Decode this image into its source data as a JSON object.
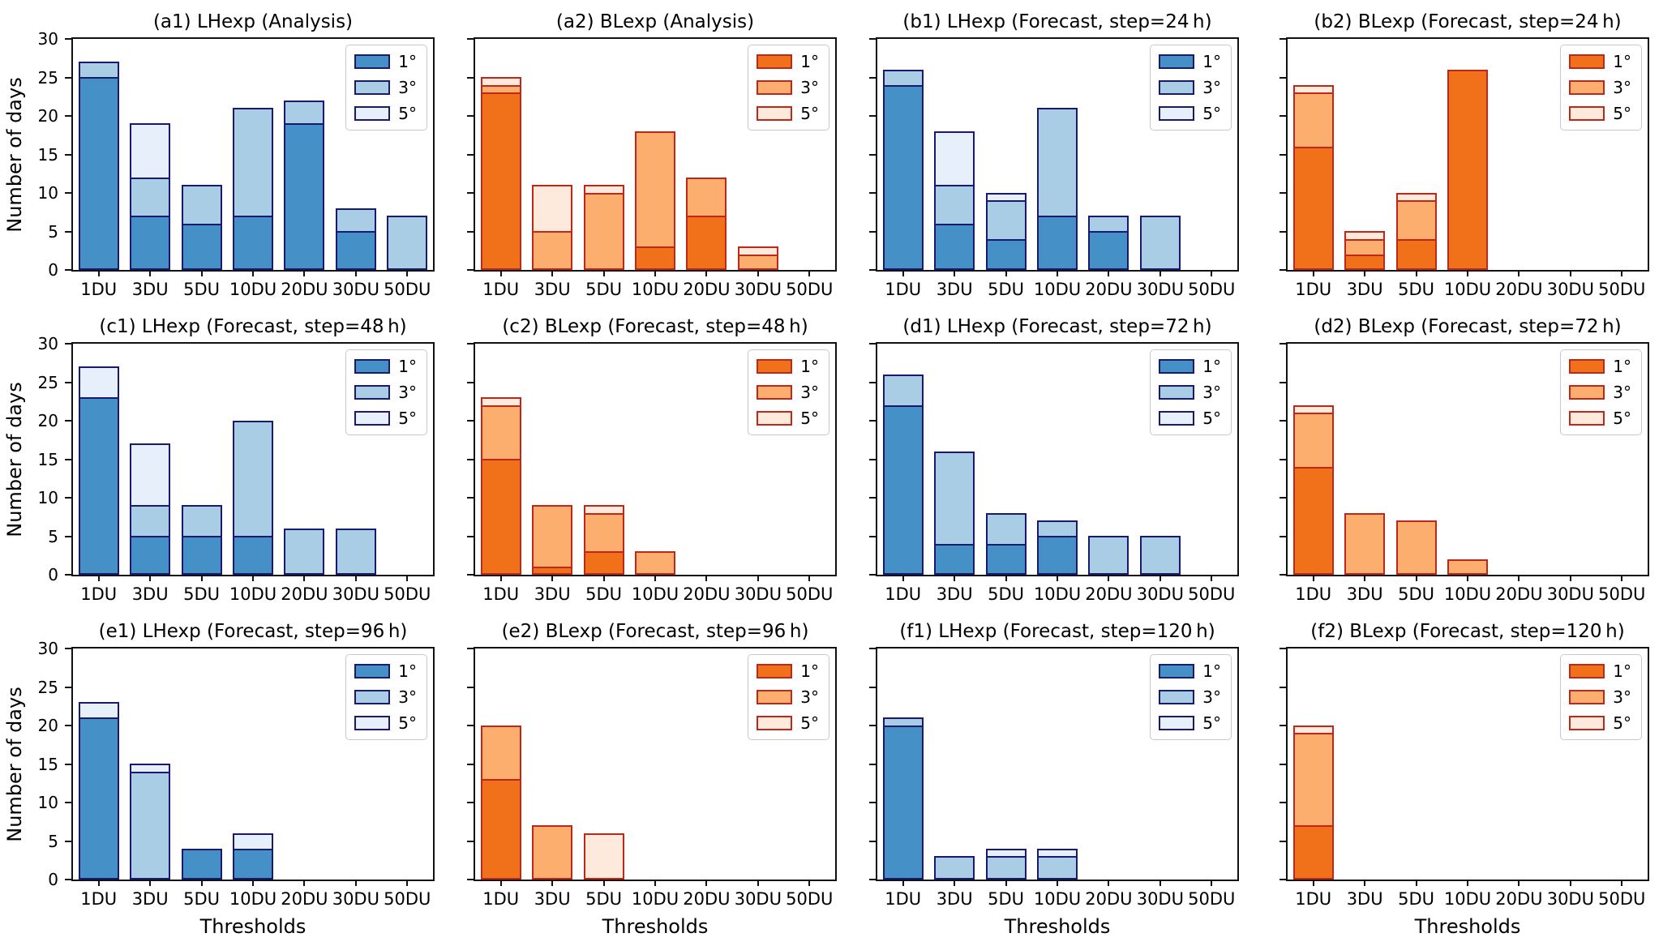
{
  "figure": {
    "ylabel": "Number of days",
    "xlabel": "Thresholds",
    "categories": [
      "1DU",
      "3DU",
      "5DU",
      "10DU",
      "20DU",
      "30DU",
      "50DU"
    ],
    "yticks": [
      "0",
      "5",
      "10",
      "15",
      "20",
      "25",
      "30"
    ],
    "ylim": [
      0,
      30
    ],
    "legend": [
      "1°",
      "3°",
      "5°"
    ],
    "colors": {
      "blue": {
        "deg1": "#4591c7",
        "deg3": "#a9cde4",
        "deg5": "#e7f0fa",
        "edge": "#191970"
      },
      "orange": {
        "deg1": "#f1701a",
        "deg3": "#fbae6e",
        "deg5": "#fdeadd",
        "edge": "#bf2818"
      }
    }
  },
  "chart_data": [
    {
      "type": "overlaid-bar",
      "id": "a1",
      "title": "(a1) LHexp (Analysis)",
      "palette": "blue",
      "series": {
        "deg1": [
          25,
          7,
          6,
          7,
          19,
          5,
          null
        ],
        "deg3": [
          27,
          12,
          11,
          21,
          22,
          8,
          7
        ],
        "deg5": [
          null,
          19,
          null,
          null,
          null,
          null,
          null
        ]
      }
    },
    {
      "type": "overlaid-bar",
      "id": "a2",
      "title": "(a2) BLexp (Analysis)",
      "palette": "orange",
      "series": {
        "deg1": [
          23,
          null,
          null,
          3,
          7,
          null,
          null
        ],
        "deg3": [
          24,
          5,
          10,
          18,
          12,
          2,
          null
        ],
        "deg5": [
          25,
          11,
          11,
          null,
          null,
          3,
          null
        ]
      }
    },
    {
      "type": "overlaid-bar",
      "id": "b1",
      "title": "(b1) LHexp (Forecast, step=24 h)",
      "palette": "blue",
      "series": {
        "deg1": [
          24,
          6,
          4,
          7,
          5,
          null,
          null
        ],
        "deg3": [
          26,
          11,
          9,
          21,
          7,
          7,
          null
        ],
        "deg5": [
          null,
          18,
          10,
          null,
          null,
          null,
          null
        ]
      }
    },
    {
      "type": "overlaid-bar",
      "id": "b2",
      "title": "(b2) BLexp (Forecast, step=24 h)",
      "palette": "orange",
      "series": {
        "deg1": [
          16,
          2,
          4,
          26,
          null,
          null,
          null
        ],
        "deg3": [
          23,
          4,
          9,
          null,
          null,
          null,
          null
        ],
        "deg5": [
          24,
          5,
          10,
          null,
          null,
          null,
          null
        ]
      }
    },
    {
      "type": "overlaid-bar",
      "id": "c1",
      "title": "(c1) LHexp (Forecast, step=48 h)",
      "palette": "blue",
      "series": {
        "deg1": [
          23,
          5,
          5,
          5,
          null,
          null,
          null
        ],
        "deg3": [
          null,
          9,
          9,
          20,
          6,
          6,
          null
        ],
        "deg5": [
          27,
          17,
          null,
          null,
          null,
          null,
          null
        ]
      }
    },
    {
      "type": "overlaid-bar",
      "id": "c2",
      "title": "(c2) BLexp (Forecast, step=48 h)",
      "palette": "orange",
      "series": {
        "deg1": [
          15,
          1,
          3,
          null,
          null,
          null,
          null
        ],
        "deg3": [
          22,
          9,
          8,
          3,
          null,
          null,
          null
        ],
        "deg5": [
          23,
          null,
          9,
          null,
          null,
          null,
          null
        ]
      }
    },
    {
      "type": "overlaid-bar",
      "id": "d1",
      "title": "(d1) LHexp (Forecast, step=72 h)",
      "palette": "blue",
      "series": {
        "deg1": [
          22,
          4,
          4,
          5,
          null,
          null,
          null
        ],
        "deg3": [
          26,
          16,
          8,
          7,
          5,
          5,
          null
        ],
        "deg5": [
          null,
          null,
          null,
          null,
          null,
          null,
          null
        ]
      }
    },
    {
      "type": "overlaid-bar",
      "id": "d2",
      "title": "(d2) BLexp (Forecast, step=72 h)",
      "palette": "orange",
      "series": {
        "deg1": [
          14,
          null,
          null,
          null,
          null,
          null,
          null
        ],
        "deg3": [
          21,
          8,
          7,
          2,
          null,
          null,
          null
        ],
        "deg5": [
          22,
          null,
          null,
          null,
          null,
          null,
          null
        ]
      }
    },
    {
      "type": "overlaid-bar",
      "id": "e1",
      "title": "(e1) LHexp (Forecast, step=96 h)",
      "palette": "blue",
      "series": {
        "deg1": [
          21,
          null,
          4,
          4,
          null,
          null,
          null
        ],
        "deg3": [
          null,
          14,
          null,
          null,
          null,
          null,
          null
        ],
        "deg5": [
          23,
          15,
          null,
          6,
          null,
          null,
          null
        ]
      }
    },
    {
      "type": "overlaid-bar",
      "id": "e2",
      "title": "(e2) BLexp (Forecast, step=96 h)",
      "palette": "orange",
      "series": {
        "deg1": [
          13,
          null,
          null,
          null,
          null,
          null,
          null
        ],
        "deg3": [
          20,
          7,
          null,
          null,
          null,
          null,
          null
        ],
        "deg5": [
          null,
          null,
          6,
          null,
          null,
          null,
          null
        ]
      }
    },
    {
      "type": "overlaid-bar",
      "id": "f1",
      "title": "(f1) LHexp (Forecast, step=120 h)",
      "palette": "blue",
      "series": {
        "deg1": [
          20,
          null,
          null,
          null,
          null,
          null,
          null
        ],
        "deg3": [
          21,
          3,
          3,
          3,
          null,
          null,
          null
        ],
        "deg5": [
          null,
          null,
          4,
          4,
          null,
          null,
          null
        ]
      }
    },
    {
      "type": "overlaid-bar",
      "id": "f2",
      "title": "(f2) BLexp (Forecast, step=120 h)",
      "palette": "orange",
      "series": {
        "deg1": [
          7,
          null,
          null,
          null,
          null,
          null,
          null
        ],
        "deg3": [
          19,
          null,
          null,
          null,
          null,
          null,
          null
        ],
        "deg5": [
          20,
          null,
          null,
          null,
          null,
          null,
          null
        ]
      }
    }
  ]
}
